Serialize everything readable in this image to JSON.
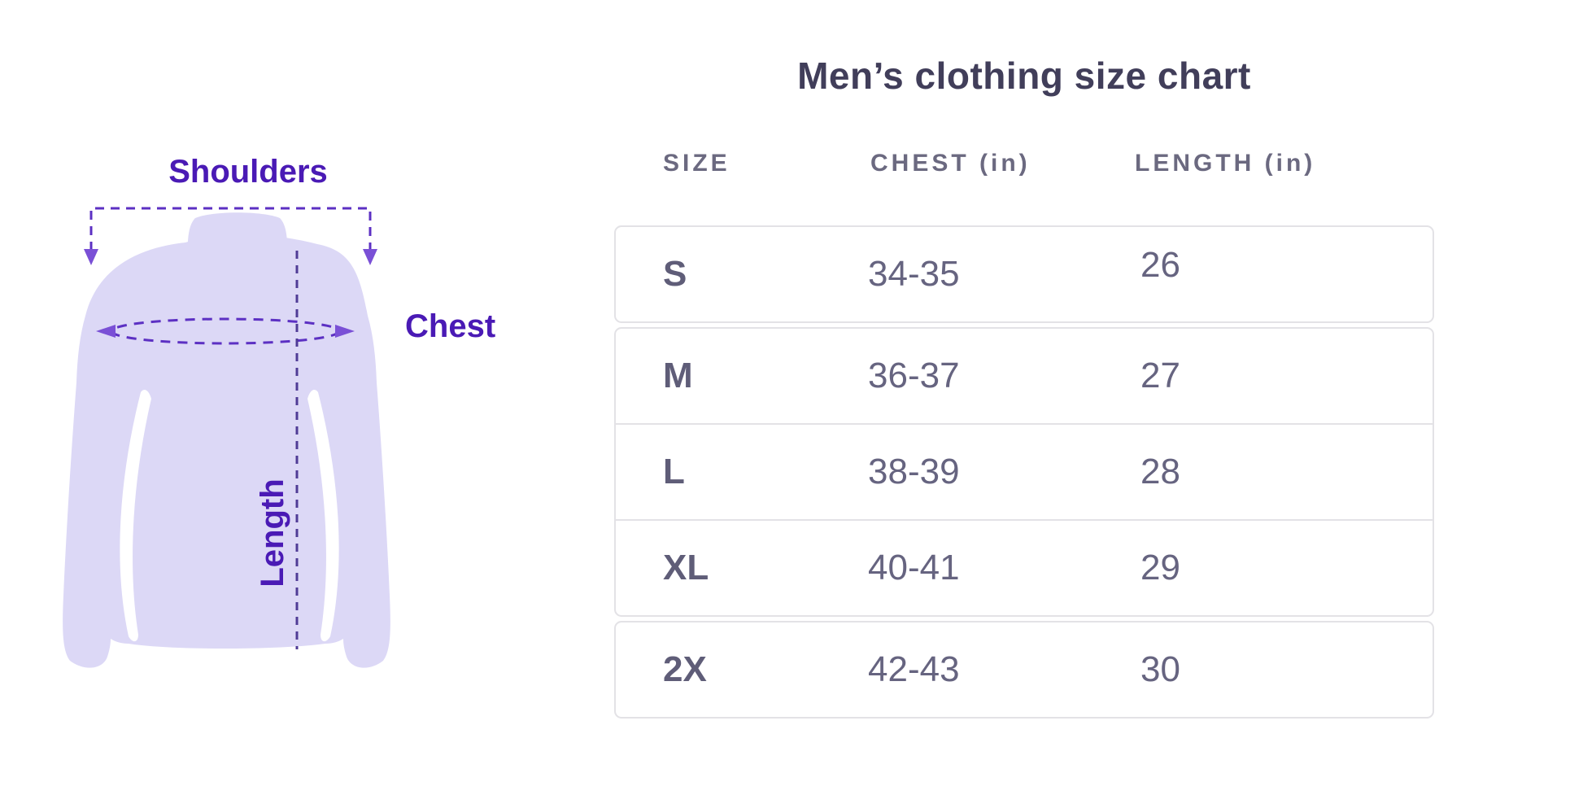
{
  "diagram": {
    "shoulders_label": "Shoulders",
    "chest_label": "Chest",
    "length_label": "Length",
    "shirt_fill": "#dcd8f6",
    "label_color": "#4a1ab5",
    "dash_color": "#5c30c3",
    "length_dash_color": "#4f3b96"
  },
  "table": {
    "title": "Men’s clothing size chart",
    "columns": [
      "SIZE",
      "CHEST (in)",
      "LENGTH (in)"
    ],
    "rows": [
      [
        "S",
        "34-35",
        "26"
      ],
      [
        "M",
        "36-37",
        "27"
      ],
      [
        "L",
        "38-39",
        "28"
      ],
      [
        "XL",
        "40-41",
        "29"
      ],
      [
        "2X",
        "42-43",
        "30"
      ]
    ]
  },
  "chart_data": {
    "type": "table",
    "title": "Men's clothing size chart",
    "columns": [
      "SIZE",
      "CHEST (in)",
      "LENGTH (in)"
    ],
    "rows": [
      {
        "size": "S",
        "chest_in": "34-35",
        "length_in": 26
      },
      {
        "size": "M",
        "chest_in": "36-37",
        "length_in": 27
      },
      {
        "size": "L",
        "chest_in": "38-39",
        "length_in": 28
      },
      {
        "size": "XL",
        "chest_in": "40-41",
        "length_in": 29
      },
      {
        "size": "2X",
        "chest_in": "42-43",
        "length_in": 30
      }
    ]
  }
}
